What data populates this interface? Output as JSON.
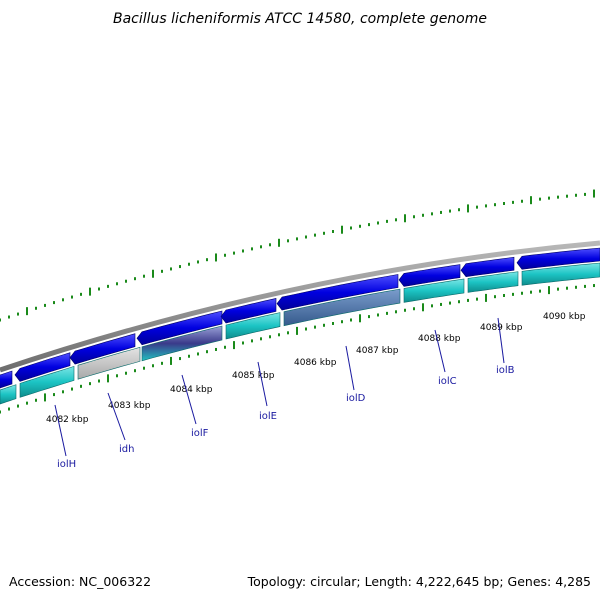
{
  "title": "Bacillus licheniformis ATCC 14580, complete genome",
  "footer": {
    "accession": "Accession: NC_006322",
    "summary": "Topology: circular; Length: 4,222,645 bp; Genes: 4,285"
  },
  "colors": {
    "backbone": "#8c8c8c",
    "forward_gene": "#0a0adc",
    "reverse_gene": "#1cc4c4",
    "gc_skew": "#1a8a1a",
    "label": "#1a1aa0",
    "highlight_gene": "#4a72a8",
    "grey_gene": "#bdbdbd"
  },
  "scale_ticks": [
    {
      "label": "4082 kbp"
    },
    {
      "label": "4083 kbp"
    },
    {
      "label": "4084 kbp"
    },
    {
      "label": "4085 kbp"
    },
    {
      "label": "4086 kbp"
    },
    {
      "label": "4087 kbp"
    },
    {
      "label": "4088 kbp"
    },
    {
      "label": "4089 kbp"
    },
    {
      "label": "4090 kbp"
    }
  ],
  "gene_labels": [
    {
      "name": "iolH"
    },
    {
      "name": "idh"
    },
    {
      "name": "iolF"
    },
    {
      "name": "iolE"
    },
    {
      "name": "iolD"
    },
    {
      "name": "iolC"
    },
    {
      "name": "iolB"
    }
  ]
}
